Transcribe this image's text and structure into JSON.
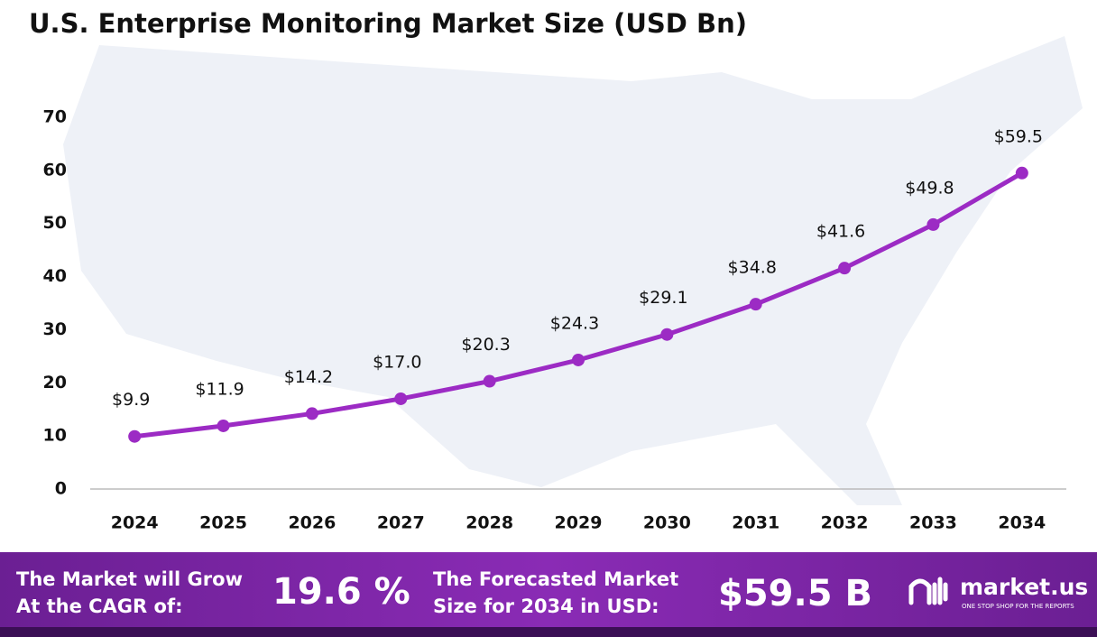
{
  "chart_data": {
    "type": "line",
    "title": "U.S. Enterprise Monitoring Market Size (USD Bn)",
    "categories": [
      "2024",
      "2025",
      "2026",
      "2027",
      "2028",
      "2029",
      "2030",
      "2031",
      "2032",
      "2033",
      "2034"
    ],
    "series": [
      {
        "color": "#9c2bc4",
        "values": [
          9.9,
          11.9,
          14.2,
          17.0,
          20.3,
          24.3,
          29.1,
          34.8,
          41.6,
          49.8,
          59.5
        ],
        "value_labels": [
          "$9.9",
          "$11.9",
          "$14.2",
          "$17.0",
          "$20.3",
          "$24.3",
          "$29.1",
          "$34.8",
          "$41.6",
          "$49.8",
          "$59.5"
        ]
      }
    ],
    "ylim": [
      0,
      70
    ],
    "yticks": [
      0,
      10,
      20,
      30,
      40,
      50,
      60,
      70
    ],
    "grid": false
  },
  "footer": {
    "cagr_label": [
      "The Market will Grow",
      "At the CAGR of:"
    ],
    "cagr_value": "19.6 %",
    "forecast_label": [
      "The Forecasted Market",
      "Size for 2034 in USD:"
    ],
    "forecast_value": "$59.5 B",
    "brand": "market.us",
    "tagline": "ONE STOP SHOP FOR THE REPORTS"
  }
}
